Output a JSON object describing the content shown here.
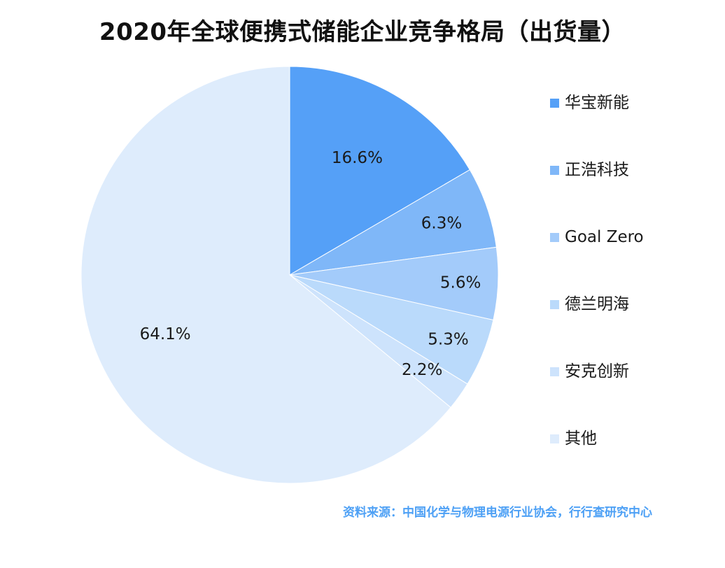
{
  "chart_data": {
    "type": "pie",
    "title": "2020年全球便携式储能企业竞争格局（出货量）",
    "slices": [
      {
        "label": "华宝新能",
        "value": 16.6,
        "display": "16.6%",
        "color": "#55a0f7"
      },
      {
        "label": "正浩科技",
        "value": 6.3,
        "display": "6.3%",
        "color": "#7fb7f8"
      },
      {
        "label": "Goal Zero",
        "value": 5.6,
        "display": "5.6%",
        "color": "#a3cbfa"
      },
      {
        "label": "德兰明海",
        "value": 5.3,
        "display": "5.3%",
        "color": "#badafb"
      },
      {
        "label": "安克创新",
        "value": 2.2,
        "display": "2.2%",
        "color": "#cde3fc"
      },
      {
        "label": "其他",
        "value": 64.1,
        "display": "64.1%",
        "color": "#deecfc"
      }
    ],
    "start": "12 o'clock",
    "direction": "clockwise",
    "legend_position": "right"
  },
  "source": "资料来源：中国化学与物理电源行业协会，行行查研究中心"
}
